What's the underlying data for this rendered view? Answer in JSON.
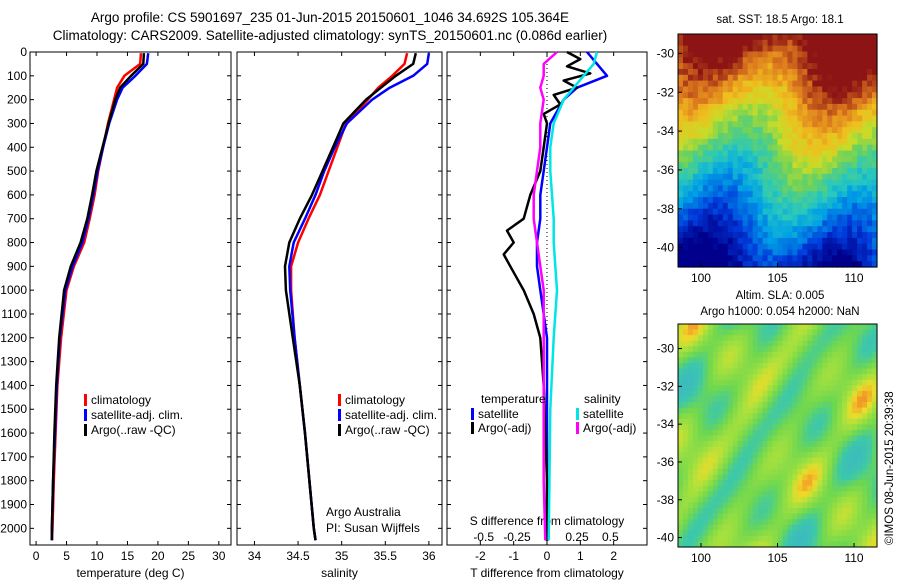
{
  "header": {
    "title_line1": "Argo profile: CS 5901697_235 01-Jun-2015 20150601_1046 34.692S 105.364E",
    "title_line2": "Climatology: CARS2009. Satellite-adjusted climatology: synTS_20150601.nc (0.086d earlier)"
  },
  "maps": {
    "sst_title": "sat. SST: 18.5 Argo: 18.1",
    "sla_title_line1": "Altim. SLA: 0.005",
    "sla_title_line2": "Argo h1000: 0.054 h2000: NaN",
    "stamp": "©IMOS 08-Jun-2015 20:39:38",
    "sst_yticks": [
      "-30",
      "-32",
      "-34",
      "-36",
      "-38",
      "-40"
    ],
    "sst_xticks": [
      "100",
      "105",
      "110"
    ],
    "sla_yticks": [
      "-30",
      "-32",
      "-34",
      "-36",
      "-38",
      "-40"
    ],
    "sla_xticks": [
      "100",
      "105",
      "110"
    ],
    "sst_lat_range": [
      -41,
      -29
    ],
    "sst_lon_range": [
      98.5,
      111.5
    ],
    "sla_lat_range": [
      -40.5,
      -28.7
    ],
    "sla_lon_range": [
      98.5,
      111.5
    ]
  },
  "colors": {
    "climatology": "#ff0000",
    "satellite": "#0000ff",
    "argo": "#000000",
    "sal_satellite": "#00e5e5",
    "sal_argo": "#ff00ff"
  },
  "legends": {
    "temp": [
      "climatology",
      "satellite-adj. clim.",
      "Argo(..raw -QC)"
    ],
    "sal": [
      "climatology",
      "satellite-adj. clim.",
      "Argo(..raw -QC)"
    ],
    "diff_head": [
      "temperature",
      "salinity"
    ],
    "diff_items": [
      "satellite",
      "Argo(-adj)",
      "satellite",
      "Argo(-adj)"
    ]
  },
  "credits": {
    "line1": "Argo Australia",
    "line2": "PI: Susan Wijffels"
  },
  "chart_data": [
    {
      "type": "line",
      "xlabel": "temperature (deg C)",
      "ylabel": "",
      "xlim": [
        -1,
        32
      ],
      "ylim": [
        2070,
        0
      ],
      "xticks": [
        0,
        5,
        10,
        15,
        20,
        25,
        30
      ],
      "yticks": [
        0,
        100,
        200,
        300,
        400,
        500,
        600,
        700,
        800,
        900,
        1000,
        1100,
        1200,
        1300,
        1400,
        1500,
        1600,
        1700,
        1800,
        1900,
        2000
      ],
      "series": [
        {
          "name": "climatology",
          "depth": [
            5,
            50,
            100,
            150,
            200,
            300,
            400,
            500,
            600,
            700,
            800,
            900,
            1000,
            1200,
            1400,
            1600,
            1800,
            2000,
            2050
          ],
          "values": [
            17.2,
            17.1,
            14.5,
            13.3,
            12.8,
            11.8,
            11.0,
            10.2,
            9.6,
            8.8,
            7.9,
            6.2,
            5.0,
            4.1,
            3.5,
            3.2,
            2.9,
            2.7,
            2.6
          ]
        },
        {
          "name": "satellite-adj. clim.",
          "depth": [
            5,
            50,
            100,
            150,
            200,
            300,
            400,
            500,
            600,
            700,
            800,
            900,
            1000,
            1200,
            1400,
            1600,
            1800,
            2000,
            2050
          ],
          "values": [
            18.4,
            18.2,
            16.3,
            14.2,
            13.3,
            12.0,
            11.0,
            10.1,
            9.4,
            8.6,
            7.6,
            6.0,
            4.8,
            3.9,
            3.4,
            3.1,
            2.8,
            2.6,
            2.6
          ]
        },
        {
          "name": "Argo(..raw -QC)",
          "depth": [
            5,
            50,
            100,
            150,
            200,
            300,
            400,
            500,
            600,
            700,
            800,
            900,
            1000,
            1200,
            1400,
            1600,
            1800,
            2000,
            2050
          ],
          "values": [
            17.7,
            17.6,
            15.6,
            13.8,
            13.0,
            11.9,
            10.9,
            9.9,
            9.2,
            8.4,
            7.3,
            5.7,
            4.6,
            3.8,
            3.3,
            3.0,
            2.8,
            2.6,
            2.6
          ]
        }
      ]
    },
    {
      "type": "line",
      "xlabel": "salinity",
      "ylabel": "",
      "xlim": [
        33.8,
        36.15
      ],
      "ylim": [
        2070,
        0
      ],
      "xticks": [
        34,
        34.5,
        35,
        35.5,
        36
      ],
      "series": [
        {
          "name": "climatology",
          "depth": [
            5,
            50,
            100,
            150,
            200,
            300,
            400,
            500,
            600,
            700,
            800,
            900,
            1000,
            1200,
            1400,
            1600,
            1800,
            2000,
            2050
          ],
          "values": [
            35.75,
            35.72,
            35.58,
            35.42,
            35.3,
            35.05,
            34.95,
            34.85,
            34.75,
            34.62,
            34.5,
            34.42,
            34.42,
            34.46,
            34.52,
            34.58,
            34.63,
            34.68,
            34.7
          ]
        },
        {
          "name": "satellite-adj. clim.",
          "depth": [
            5,
            50,
            100,
            150,
            200,
            300,
            400,
            500,
            600,
            700,
            800,
            900,
            1000,
            1200,
            1400,
            1600,
            1800,
            2000,
            2050
          ],
          "values": [
            36.0,
            35.98,
            35.82,
            35.55,
            35.35,
            35.06,
            34.92,
            34.8,
            34.7,
            34.58,
            34.45,
            34.4,
            34.41,
            34.46,
            34.52,
            34.58,
            34.63,
            34.68,
            34.7
          ]
        },
        {
          "name": "Argo(..raw -QC)",
          "depth": [
            5,
            50,
            100,
            150,
            200,
            300,
            400,
            500,
            600,
            700,
            800,
            900,
            1000,
            1200,
            1400,
            1600,
            1800,
            2000,
            2050
          ],
          "values": [
            35.85,
            35.82,
            35.62,
            35.45,
            35.28,
            35.02,
            34.9,
            34.78,
            34.66,
            34.52,
            34.4,
            34.35,
            34.36,
            34.44,
            34.52,
            34.58,
            34.63,
            34.68,
            34.7
          ]
        }
      ]
    },
    {
      "type": "line",
      "xlabel": "T difference from climatology",
      "top_label": "S difference from climatology",
      "xlim": [
        -3,
        3
      ],
      "ylim": [
        2070,
        0
      ],
      "xticks": [
        -2,
        -1,
        0,
        1,
        2
      ],
      "top_ticks": [
        "-0.5",
        "-0.25",
        "0",
        "0.25",
        "0.5"
      ],
      "series": [
        {
          "name": "temperature satellite",
          "depth": [
            0,
            50,
            100,
            150,
            200,
            250,
            300,
            400,
            500,
            600,
            700,
            800,
            900,
            1000,
            1100,
            1200,
            1500,
            2050
          ],
          "values": [
            1.2,
            1.5,
            1.8,
            0.9,
            0.5,
            0.3,
            0.1,
            0.0,
            -0.1,
            -0.2,
            -0.2,
            -0.3,
            -0.3,
            -0.2,
            -0.1,
            0,
            0,
            0
          ]
        },
        {
          "name": "temperature Argo(-adj)",
          "depth": [
            0,
            30,
            60,
            90,
            120,
            150,
            180,
            220,
            260,
            300,
            400,
            500,
            600,
            700,
            750,
            800,
            850,
            900,
            950,
            1000,
            1100,
            1200,
            1400,
            1800,
            2050
          ],
          "values": [
            0.6,
            1.0,
            0.6,
            1.3,
            0.5,
            0.9,
            0.2,
            0.4,
            -0.1,
            0.0,
            -0.1,
            -0.2,
            -0.5,
            -0.7,
            -1.2,
            -1.0,
            -1.3,
            -1.1,
            -0.9,
            -0.7,
            -0.4,
            -0.2,
            -0.1,
            0,
            0
          ]
        },
        {
          "name": "salinity satellite",
          "depth": [
            0,
            50,
            100,
            150,
            200,
            300,
            400,
            500,
            600,
            700,
            800,
            900,
            1000,
            1200,
            1500,
            2050
          ],
          "values": [
            1.5,
            1.4,
            1.1,
            0.8,
            0.5,
            0.2,
            0.1,
            0.1,
            0.15,
            0.2,
            0.2,
            0.25,
            0.3,
            0.2,
            0.1,
            0.05
          ]
        },
        {
          "name": "salinity Argo(-adj)",
          "depth": [
            0,
            50,
            100,
            150,
            200,
            300,
            400,
            500,
            600,
            700,
            800,
            900,
            1000,
            1200,
            1500,
            1800,
            2050
          ],
          "values": [
            0.3,
            -0.1,
            -0.1,
            -0.2,
            -0.1,
            -0.2,
            -0.2,
            -0.3,
            -0.4,
            -0.4,
            -0.3,
            -0.2,
            -0.1,
            -0.1,
            -0.1,
            -0.1,
            -0.05
          ]
        }
      ]
    }
  ]
}
